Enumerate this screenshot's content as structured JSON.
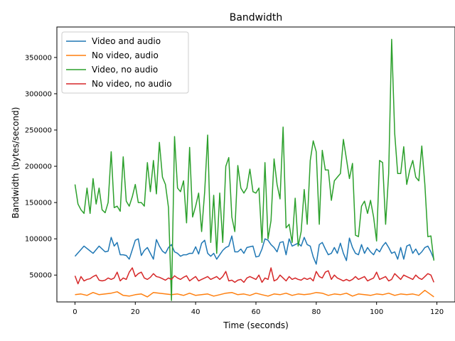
{
  "chart_data": {
    "type": "line",
    "title": "Bandwidth",
    "xlabel": "Time (seconds)",
    "ylabel": "Bandwidth (bytes/second)",
    "xlim": [
      -6,
      126
    ],
    "ylim": [
      13000,
      392000
    ],
    "xticks": [
      0,
      20,
      40,
      60,
      80,
      100,
      120
    ],
    "yticks": [
      50000,
      100000,
      150000,
      200000,
      250000,
      300000,
      350000
    ],
    "legend_position": "top-left",
    "grid": false,
    "series": [
      {
        "name": "Video and audio",
        "color": "#1f77b4",
        "x": [
          0,
          3,
          6,
          8,
          10,
          11,
          12,
          13,
          14,
          15,
          16,
          17,
          18,
          19,
          20,
          21,
          22,
          23,
          24,
          25,
          26,
          27,
          28,
          29,
          30,
          31,
          32,
          33,
          34,
          35,
          36,
          37,
          38,
          39,
          40,
          41,
          42,
          43,
          44,
          45,
          46,
          47,
          48,
          49,
          50,
          51,
          52,
          53,
          54,
          55,
          56,
          57,
          58,
          59,
          60,
          61,
          62,
          63,
          64,
          65,
          66,
          67,
          68,
          69,
          70,
          71,
          72,
          73,
          74,
          75,
          76,
          77,
          78,
          79,
          80,
          81,
          82,
          83,
          84,
          85,
          86,
          87,
          88,
          89,
          90,
          91,
          92,
          93,
          94,
          95,
          96,
          97,
          98,
          99,
          100,
          101,
          102,
          103,
          104,
          105,
          106,
          107,
          108,
          109,
          110,
          111,
          112,
          113,
          114,
          115,
          116,
          117,
          118,
          119
        ],
        "values": [
          76000,
          90000,
          80000,
          90000,
          82000,
          83000,
          102000,
          90000,
          95000,
          78000,
          78000,
          77000,
          72000,
          85000,
          98000,
          100000,
          77000,
          84000,
          88000,
          80000,
          72000,
          99000,
          90000,
          83000,
          80000,
          88000,
          92000,
          82000,
          80000,
          76000,
          78000,
          78000,
          80000,
          80000,
          89000,
          79000,
          94000,
          98000,
          80000,
          76000,
          80000,
          72000,
          78000,
          84000,
          88000,
          90000,
          104000,
          82000,
          82000,
          86000,
          80000,
          88000,
          89000,
          90000,
          75000,
          76000,
          86000,
          100000,
          98000,
          92000,
          88000,
          82000,
          95000,
          96000,
          78000,
          100000,
          90000,
          92000,
          94000,
          90000,
          102000,
          92000,
          90000,
          75000,
          65000,
          92000,
          95000,
          86000,
          78000,
          80000,
          88000,
          80000,
          94000,
          80000,
          70000,
          101000,
          88000,
          80000,
          78000,
          92000,
          80000,
          88000,
          82000,
          78000,
          86000,
          82000,
          90000,
          95000,
          88000,
          80000,
          82000,
          72000,
          88000,
          72000,
          90000,
          92000,
          80000,
          86000,
          78000,
          82000,
          88000,
          90000,
          82000,
          72000
        ]
      },
      {
        "name": "No video, audio",
        "color": "#ff7f0e",
        "x": [
          0,
          2,
          4,
          6,
          8,
          10,
          12,
          14,
          16,
          18,
          20,
          22,
          24,
          26,
          28,
          30,
          32,
          34,
          36,
          38,
          40,
          42,
          44,
          46,
          48,
          50,
          52,
          54,
          56,
          58,
          60,
          62,
          64,
          66,
          68,
          70,
          72,
          74,
          76,
          78,
          80,
          82,
          84,
          86,
          88,
          90,
          92,
          94,
          96,
          98,
          100,
          102,
          104,
          106,
          108,
          110,
          112,
          114,
          116,
          118,
          119
        ],
        "values": [
          23000,
          24000,
          22000,
          26000,
          23000,
          24000,
          25000,
          27000,
          22000,
          21000,
          23000,
          24000,
          20000,
          26000,
          25000,
          24000,
          23000,
          24000,
          22000,
          25000,
          22000,
          23000,
          24000,
          21000,
          23000,
          25000,
          26000,
          23000,
          24000,
          22000,
          25000,
          23000,
          21000,
          24000,
          23000,
          25000,
          22000,
          24000,
          23000,
          24000,
          26000,
          25000,
          22000,
          24000,
          23000,
          25000,
          21000,
          24000,
          23000,
          22000,
          24000,
          23000,
          25000,
          22000,
          24000,
          23000,
          24000,
          22000,
          29000,
          23000,
          20000
        ]
      },
      {
        "name": "Video, no audio",
        "color": "#2ca02c",
        "x": [
          0,
          1,
          2,
          3,
          4,
          5,
          6,
          7,
          8,
          9,
          10,
          11,
          12,
          13,
          14,
          15,
          16,
          17,
          18,
          19,
          20,
          21,
          22,
          23,
          24,
          25,
          26,
          27,
          28,
          29,
          30,
          31,
          32,
          33,
          34,
          35,
          36,
          37,
          38,
          39,
          40,
          41,
          42,
          43,
          44,
          45,
          46,
          47,
          48,
          49,
          50,
          51,
          52,
          53,
          54,
          55,
          56,
          57,
          58,
          59,
          60,
          61,
          62,
          63,
          64,
          65,
          66,
          67,
          68,
          69,
          70,
          71,
          72,
          73,
          74,
          75,
          76,
          77,
          78,
          79,
          80,
          81,
          82,
          83,
          84,
          85,
          86,
          87,
          88,
          89,
          90,
          91,
          92,
          93,
          94,
          95,
          96,
          97,
          98,
          99,
          100,
          101,
          102,
          103,
          104,
          105,
          106,
          107,
          108,
          109,
          110,
          111,
          112,
          113,
          114,
          115,
          116,
          117,
          118,
          119
        ],
        "values": [
          175000,
          148000,
          140000,
          135000,
          170000,
          135000,
          183000,
          148000,
          170000,
          140000,
          136000,
          150000,
          220000,
          143000,
          145000,
          138000,
          213000,
          152000,
          145000,
          158000,
          175000,
          150000,
          150000,
          145000,
          205000,
          165000,
          208000,
          162000,
          233000,
          185000,
          175000,
          143000,
          15000,
          241000,
          170000,
          165000,
          180000,
          122000,
          226000,
          130000,
          145000,
          163000,
          110000,
          165000,
          243000,
          95000,
          160000,
          80000,
          163000,
          95000,
          200000,
          212000,
          130000,
          110000,
          201000,
          170000,
          163000,
          170000,
          196000,
          165000,
          163000,
          170000,
          95000,
          205000,
          100000,
          125000,
          210000,
          175000,
          155000,
          254000,
          115000,
          120000,
          95000,
          156000,
          90000,
          110000,
          168000,
          120000,
          208000,
          235000,
          220000,
          120000,
          222000,
          195000,
          195000,
          153000,
          180000,
          185000,
          190000,
          237000,
          210000,
          183000,
          204000,
          105000,
          103000,
          145000,
          152000,
          135000,
          153000,
          130000,
          97000,
          208000,
          205000,
          120000,
          190000,
          375000,
          245000,
          190000,
          190000,
          227000,
          175000,
          195000,
          208000,
          185000,
          180000,
          228000,
          175000,
          103000,
          104000,
          70000
        ]
      },
      {
        "name": "No video, no audio",
        "color": "#d62728",
        "x": [
          0,
          1,
          2,
          3,
          4,
          5,
          6,
          7,
          8,
          9,
          10,
          11,
          12,
          13,
          14,
          15,
          16,
          17,
          18,
          19,
          20,
          21,
          22,
          23,
          24,
          25,
          26,
          27,
          28,
          29,
          30,
          31,
          32,
          33,
          34,
          35,
          36,
          37,
          38,
          39,
          40,
          41,
          42,
          43,
          44,
          45,
          46,
          47,
          48,
          49,
          50,
          51,
          52,
          53,
          54,
          55,
          56,
          57,
          58,
          59,
          60,
          61,
          62,
          63,
          64,
          65,
          66,
          67,
          68,
          69,
          70,
          71,
          72,
          73,
          74,
          75,
          76,
          77,
          78,
          79,
          80,
          81,
          82,
          83,
          84,
          85,
          86,
          87,
          88,
          89,
          90,
          91,
          92,
          93,
          94,
          95,
          96,
          97,
          98,
          99,
          100,
          101,
          102,
          103,
          104,
          105,
          106,
          107,
          108,
          109,
          110,
          111,
          112,
          113,
          114,
          115,
          116,
          117,
          118,
          119
        ],
        "values": [
          49000,
          38000,
          48000,
          42000,
          44000,
          45000,
          48000,
          50000,
          43000,
          42000,
          43000,
          46000,
          44000,
          46000,
          54000,
          42000,
          46000,
          44000,
          54000,
          60000,
          48000,
          52000,
          54000,
          46000,
          44000,
          47000,
          52000,
          48000,
          47000,
          45000,
          43000,
          46000,
          44000,
          49000,
          46000,
          44000,
          47000,
          49000,
          42000,
          45000,
          48000,
          42000,
          44000,
          46000,
          48000,
          44000,
          46000,
          48000,
          44000,
          48000,
          55000,
          42000,
          43000,
          40000,
          43000,
          44000,
          40000,
          46000,
          48000,
          46000,
          44000,
          50000,
          40000,
          46000,
          44000,
          60000,
          42000,
          44000,
          50000,
          46000,
          42000,
          48000,
          44000,
          46000,
          44000,
          43000,
          46000,
          44000,
          46000,
          42000,
          55000,
          48000,
          46000,
          54000,
          56000,
          44000,
          50000,
          46000,
          44000,
          42000,
          44000,
          42000,
          44000,
          48000,
          44000,
          46000,
          48000,
          42000,
          44000,
          46000,
          54000,
          44000,
          46000,
          48000,
          42000,
          44000,
          52000,
          48000,
          44000,
          50000,
          48000,
          46000,
          44000,
          50000,
          46000,
          44000,
          48000,
          52000,
          50000,
          40000
        ]
      }
    ]
  }
}
